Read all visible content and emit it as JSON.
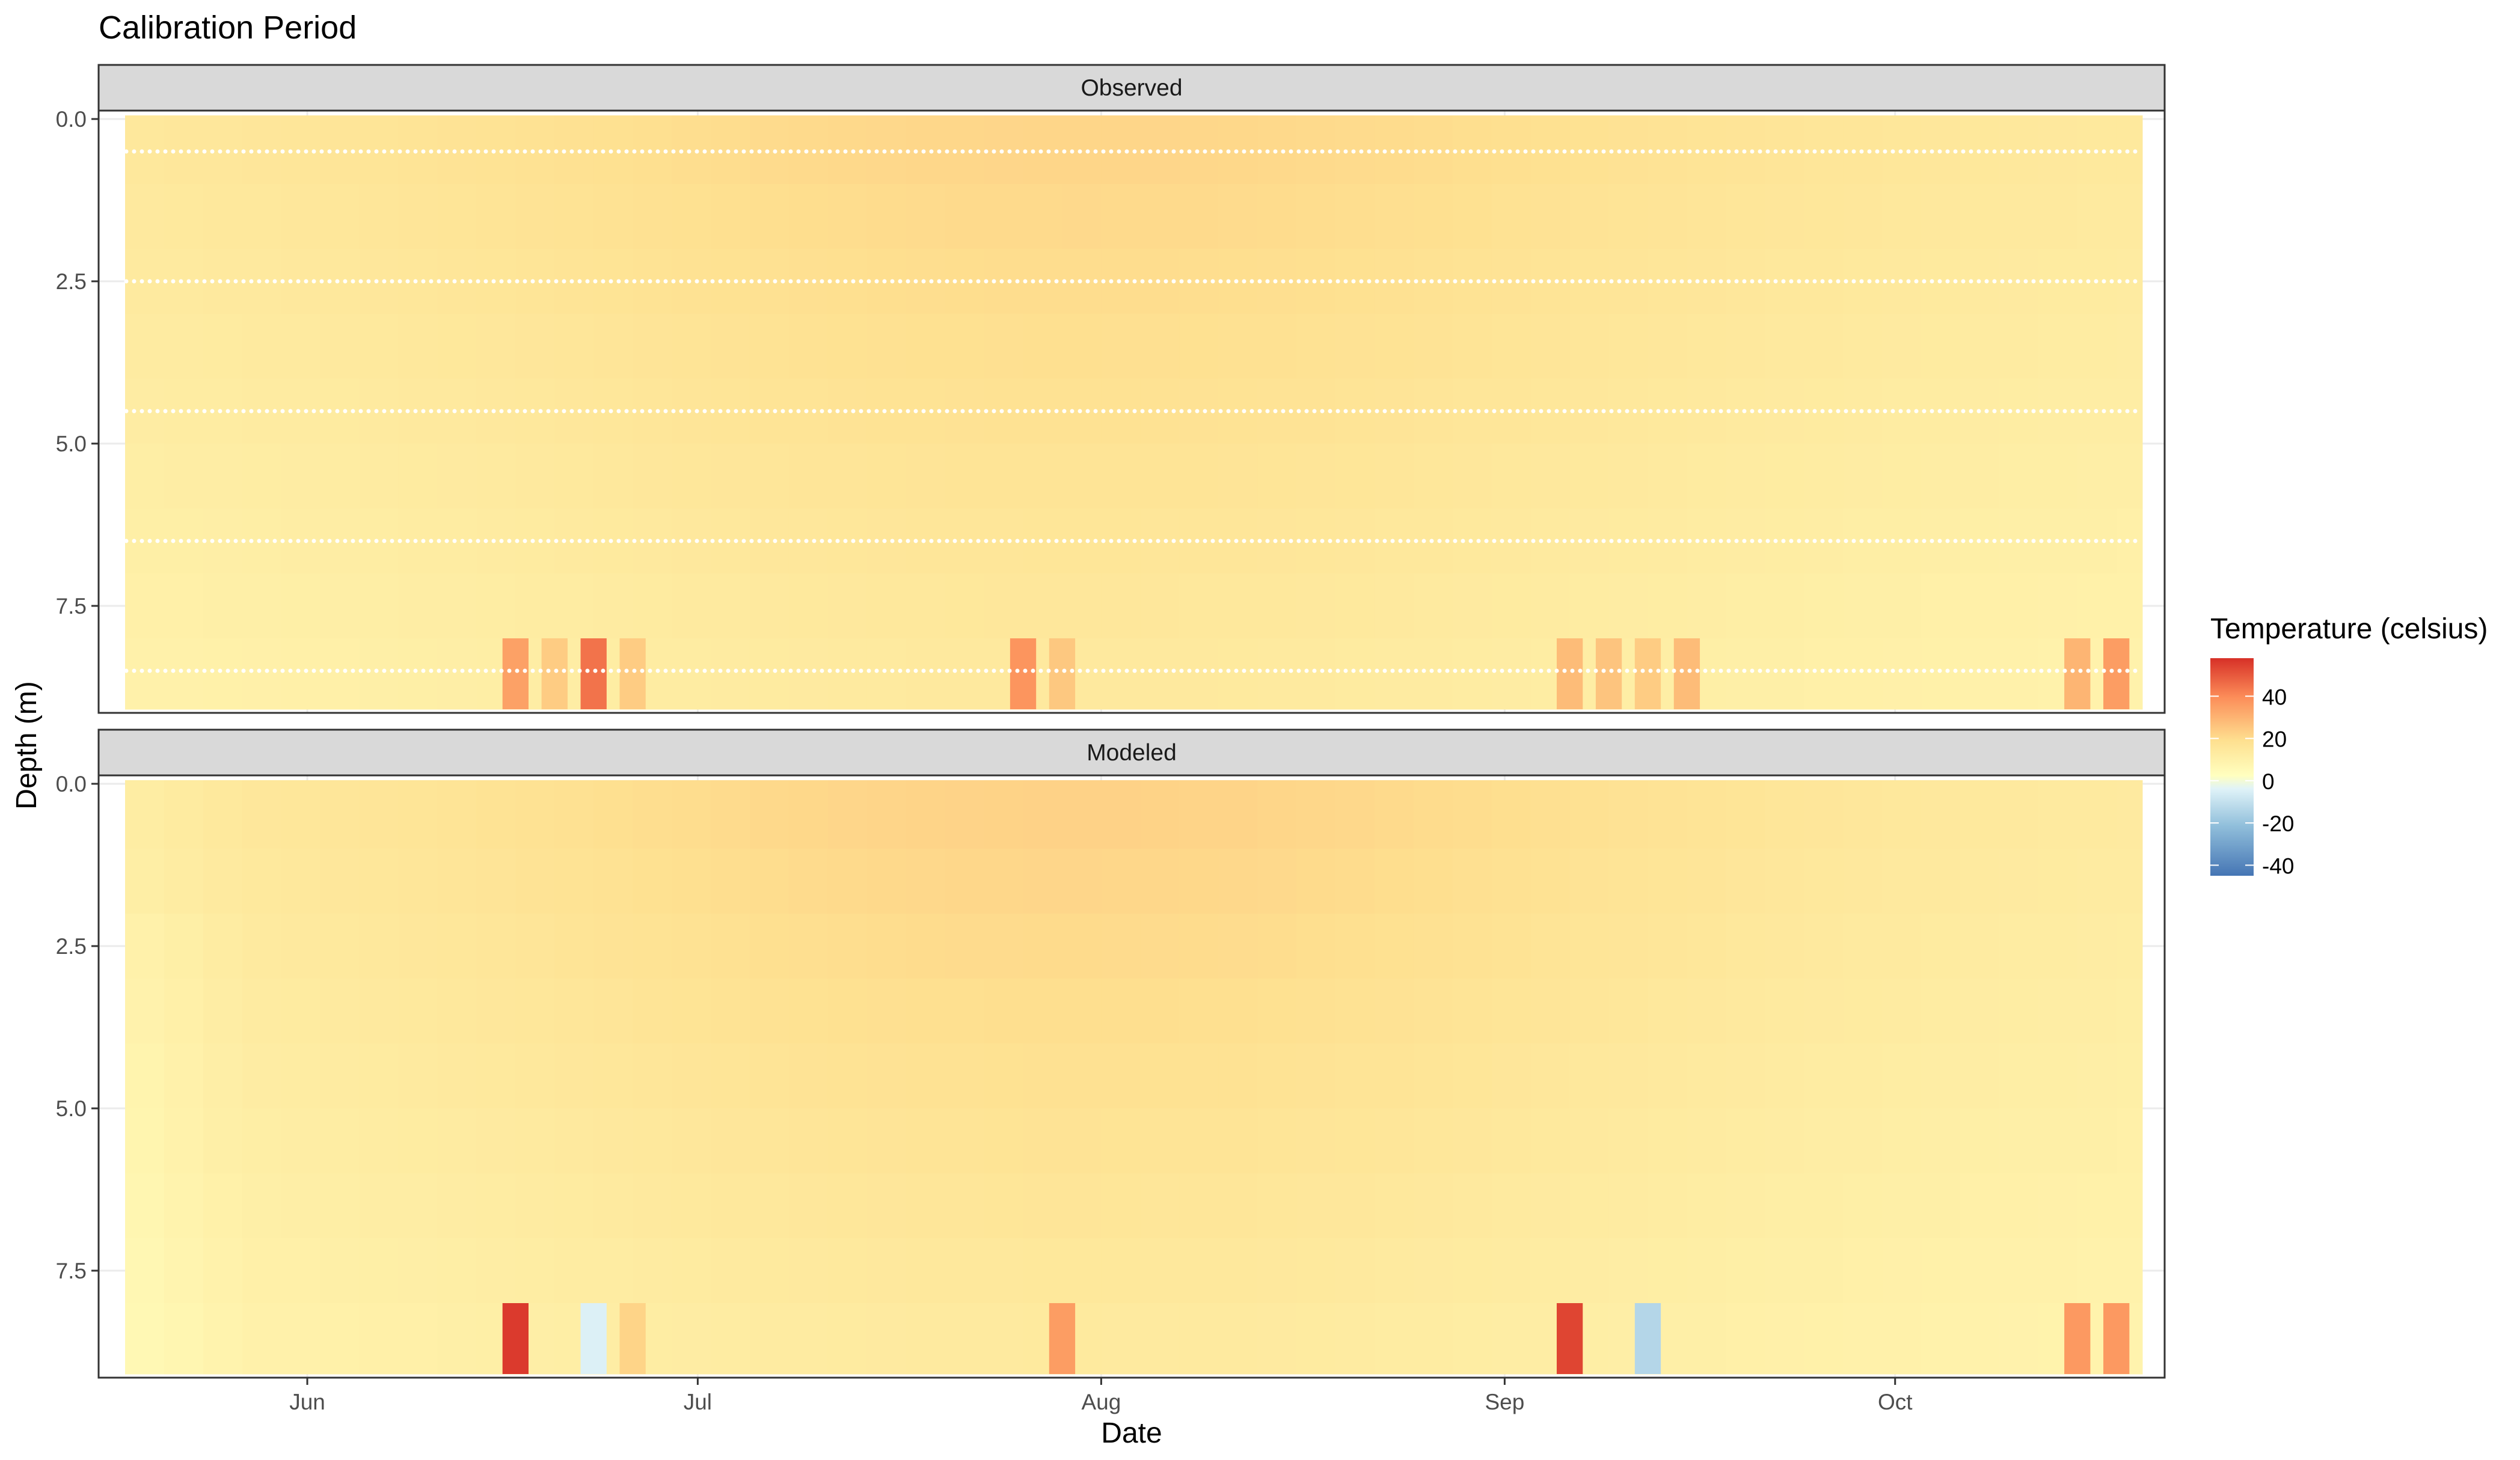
{
  "chart_data": {
    "type": "heatmap",
    "title": "Calibration Period",
    "xlabel": "Date",
    "ylabel": "Depth (m)",
    "x_range": [
      "2017-05-18",
      "2017-10-20"
    ],
    "x_ticks": [
      {
        "date": "2017-06-01",
        "label": "Jun"
      },
      {
        "date": "2017-07-01",
        "label": "Jul"
      },
      {
        "date": "2017-08-01",
        "label": "Aug"
      },
      {
        "date": "2017-09-01",
        "label": "Sep"
      },
      {
        "date": "2017-10-01",
        "label": "Oct"
      }
    ],
    "y_range": [
      0,
      9
    ],
    "y_reversed": true,
    "y_ticks": [
      {
        "value": 0,
        "label": "0.0"
      },
      {
        "value": 2.5,
        "label": "2.5"
      },
      {
        "value": 5,
        "label": "5.0"
      },
      {
        "value": 7.5,
        "label": "7.5"
      }
    ],
    "depth_layers": [
      0,
      1,
      2,
      3,
      4,
      5,
      6,
      7,
      8
    ],
    "legend": {
      "title": "Temperature (celsius)",
      "placement": "right",
      "range": [
        -45,
        58
      ],
      "ticks": [
        {
          "value": 40,
          "label": "40"
        },
        {
          "value": 20,
          "label": "20"
        },
        {
          "value": 0,
          "label": "0"
        },
        {
          "value": -20,
          "label": "-20"
        },
        {
          "value": -40,
          "label": "-40"
        }
      ],
      "colors": [
        "#4575b4",
        "#91bfdb",
        "#e0f3f8",
        "#ffffbf",
        "#fee090",
        "#fc8d59",
        "#d73027"
      ]
    },
    "grid": true,
    "panels": [
      {
        "name": "Observed",
        "observation_depths": [
          0.5,
          2.5,
          4.5,
          6.5,
          8.5
        ],
        "anomalies": [
          {
            "date": "2017-06-16",
            "temp": 35
          },
          {
            "date": "2017-06-19",
            "temp": 24
          },
          {
            "date": "2017-06-22",
            "temp": 45
          },
          {
            "date": "2017-06-25",
            "temp": 24
          },
          {
            "date": "2017-07-25",
            "temp": 38
          },
          {
            "date": "2017-07-28",
            "temp": 25
          },
          {
            "date": "2017-09-05",
            "temp": 28
          },
          {
            "date": "2017-09-08",
            "temp": 26
          },
          {
            "date": "2017-09-11",
            "temp": 24
          },
          {
            "date": "2017-09-14",
            "temp": 28
          },
          {
            "date": "2017-10-14",
            "temp": 30
          },
          {
            "date": "2017-10-17",
            "temp": 36
          }
        ]
      },
      {
        "name": "Modeled",
        "anomalies": [
          {
            "date": "2017-06-16",
            "temp": 56
          },
          {
            "date": "2017-06-22",
            "temp": -3
          },
          {
            "date": "2017-06-25",
            "temp": 22
          },
          {
            "date": "2017-07-28",
            "temp": 36
          },
          {
            "date": "2017-09-05",
            "temp": 54
          },
          {
            "date": "2017-09-11",
            "temp": -12
          },
          {
            "date": "2017-10-14",
            "temp": 37
          },
          {
            "date": "2017-10-17",
            "temp": 37
          }
        ]
      }
    ]
  }
}
